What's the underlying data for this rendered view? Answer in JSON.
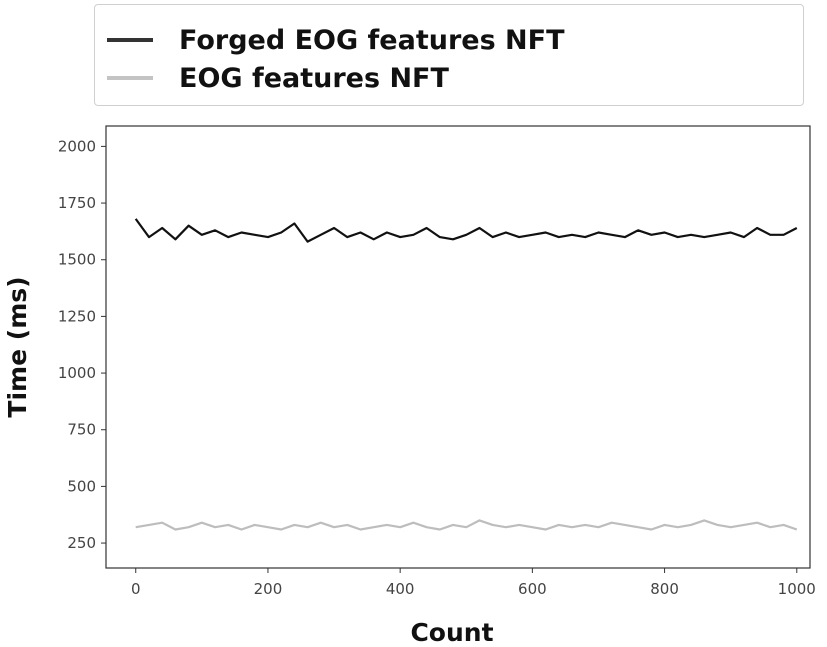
{
  "chart_data": {
    "type": "line",
    "title": "",
    "xlabel": "Count",
    "ylabel": "Time (ms)",
    "xlim": [
      -45,
      1020
    ],
    "ylim": [
      140,
      2090
    ],
    "xticks": [
      0,
      200,
      400,
      600,
      800,
      1000
    ],
    "yticks": [
      250,
      500,
      750,
      1000,
      1250,
      1500,
      1750,
      2000
    ],
    "grid": false,
    "legend_position": "top",
    "series": [
      {
        "name": "Forged EOG features NFT",
        "color": "#111111",
        "x": [
          0,
          20,
          40,
          60,
          80,
          100,
          120,
          140,
          160,
          180,
          200,
          220,
          240,
          260,
          280,
          300,
          320,
          340,
          360,
          380,
          400,
          420,
          440,
          460,
          480,
          500,
          520,
          540,
          560,
          580,
          600,
          620,
          640,
          660,
          680,
          700,
          720,
          740,
          760,
          780,
          800,
          820,
          840,
          860,
          880,
          900,
          920,
          940,
          960,
          980,
          1000
        ],
        "y": [
          1680,
          1600,
          1640,
          1590,
          1650,
          1610,
          1630,
          1600,
          1620,
          1610,
          1600,
          1620,
          1660,
          1580,
          1610,
          1640,
          1600,
          1620,
          1590,
          1620,
          1600,
          1610,
          1640,
          1600,
          1590,
          1610,
          1640,
          1600,
          1620,
          1600,
          1610,
          1620,
          1600,
          1610,
          1600,
          1620,
          1610,
          1600,
          1630,
          1610,
          1620,
          1600,
          1610,
          1600,
          1610,
          1620,
          1600,
          1640,
          1610,
          1610,
          1640
        ]
      },
      {
        "name": "EOG features NFT",
        "color": "#bdbdbd",
        "x": [
          0,
          20,
          40,
          60,
          80,
          100,
          120,
          140,
          160,
          180,
          200,
          220,
          240,
          260,
          280,
          300,
          320,
          340,
          360,
          380,
          400,
          420,
          440,
          460,
          480,
          500,
          520,
          540,
          560,
          580,
          600,
          620,
          640,
          660,
          680,
          700,
          720,
          740,
          760,
          780,
          800,
          820,
          840,
          860,
          880,
          900,
          920,
          940,
          960,
          980,
          1000
        ],
        "y": [
          320,
          330,
          340,
          310,
          320,
          340,
          320,
          330,
          310,
          330,
          320,
          310,
          330,
          320,
          340,
          320,
          330,
          310,
          320,
          330,
          320,
          340,
          320,
          310,
          330,
          320,
          350,
          330,
          320,
          330,
          320,
          310,
          330,
          320,
          330,
          320,
          340,
          330,
          320,
          310,
          330,
          320,
          330,
          350,
          330,
          320,
          330,
          340,
          320,
          330,
          310
        ]
      }
    ]
  }
}
